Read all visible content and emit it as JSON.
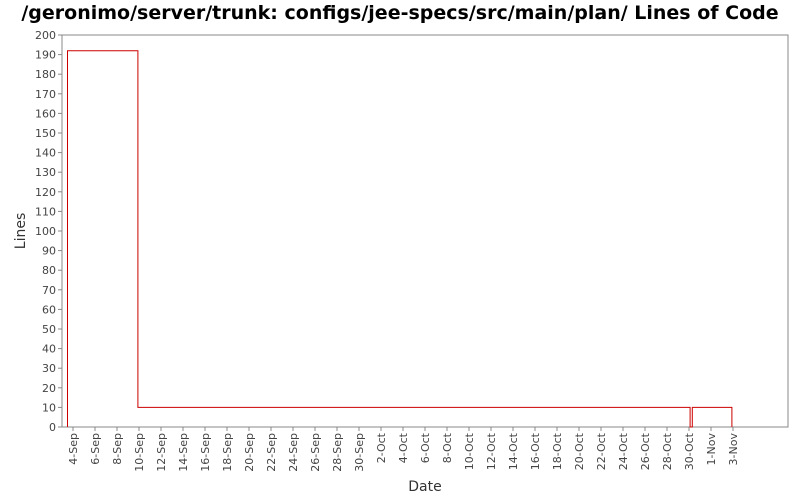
{
  "chart_data": {
    "type": "line",
    "title": "/geronimo/server/trunk: configs/jee-specs/src/main/plan/ Lines of Code",
    "xlabel": "Date",
    "ylabel": "Lines",
    "ylim": [
      0,
      200
    ],
    "y_ticks": [
      0,
      10,
      20,
      30,
      40,
      50,
      60,
      70,
      80,
      90,
      100,
      110,
      120,
      130,
      140,
      150,
      160,
      170,
      180,
      190,
      200
    ],
    "x_range_days": [
      -1,
      65
    ],
    "x_ticks": [
      {
        "label": "4-Sep",
        "day": 0
      },
      {
        "label": "6-Sep",
        "day": 2
      },
      {
        "label": "8-Sep",
        "day": 4
      },
      {
        "label": "10-Sep",
        "day": 6
      },
      {
        "label": "12-Sep",
        "day": 8
      },
      {
        "label": "14-Sep",
        "day": 10
      },
      {
        "label": "16-Sep",
        "day": 12
      },
      {
        "label": "18-Sep",
        "day": 14
      },
      {
        "label": "20-Sep",
        "day": 16
      },
      {
        "label": "22-Sep",
        "day": 18
      },
      {
        "label": "24-Sep",
        "day": 20
      },
      {
        "label": "26-Sep",
        "day": 22
      },
      {
        "label": "28-Sep",
        "day": 24
      },
      {
        "label": "30-Sep",
        "day": 26
      },
      {
        "label": "2-Oct",
        "day": 28
      },
      {
        "label": "4-Oct",
        "day": 30
      },
      {
        "label": "6-Oct",
        "day": 32
      },
      {
        "label": "8-Oct",
        "day": 34
      },
      {
        "label": "10-Oct",
        "day": 36
      },
      {
        "label": "12-Oct",
        "day": 38
      },
      {
        "label": "14-Oct",
        "day": 40
      },
      {
        "label": "16-Oct",
        "day": 42
      },
      {
        "label": "18-Oct",
        "day": 44
      },
      {
        "label": "20-Oct",
        "day": 46
      },
      {
        "label": "22-Oct",
        "day": 48
      },
      {
        "label": "24-Oct",
        "day": 50
      },
      {
        "label": "26-Oct",
        "day": 52
      },
      {
        "label": "28-Oct",
        "day": 54
      },
      {
        "label": "30-Oct",
        "day": 56
      },
      {
        "label": "1-Nov",
        "day": 58
      },
      {
        "label": "3-Nov",
        "day": 60
      }
    ],
    "series": [
      {
        "name": "Lines of Code",
        "color": "#cc0000",
        "points": [
          {
            "day": -0.5,
            "value": 0
          },
          {
            "day": -0.5,
            "value": 192
          },
          {
            "day": 5.9,
            "value": 192
          },
          {
            "day": 5.9,
            "value": 10
          },
          {
            "day": 56.1,
            "value": 10
          },
          {
            "day": 56.1,
            "value": 0
          },
          {
            "day": 56.3,
            "value": 0
          },
          {
            "day": 56.3,
            "value": 10
          },
          {
            "day": 59.9,
            "value": 10
          },
          {
            "day": 59.9,
            "value": 0
          }
        ]
      }
    ]
  }
}
